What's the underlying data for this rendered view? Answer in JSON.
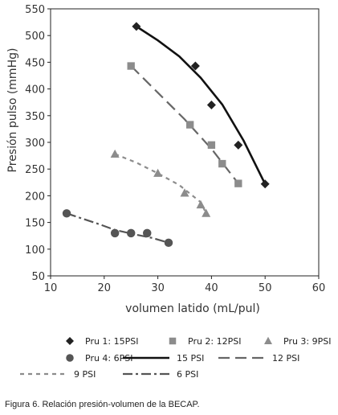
{
  "chart_data": {
    "type": "scatter",
    "xlabel": "volumen latido (mL/pul)",
    "ylabel": "Presión pulso (mmHg)",
    "xlim": [
      10,
      60
    ],
    "ylim": [
      50,
      550
    ],
    "xticks": [
      10,
      20,
      30,
      40,
      50,
      60
    ],
    "yticks": [
      50,
      100,
      150,
      200,
      250,
      300,
      350,
      400,
      450,
      500,
      550
    ],
    "grid": "none",
    "legend_position": "bottom",
    "series": [
      {
        "name": "Pru 1: 15PSI",
        "kind": "points",
        "marker": "diamond",
        "color": "#222222",
        "x": [
          26,
          37,
          40,
          45,
          50
        ],
        "y": [
          517,
          443,
          370,
          295,
          222
        ]
      },
      {
        "name": "Pru 2: 12PSI",
        "kind": "points",
        "marker": "square",
        "color": "#8c8c8c",
        "x": [
          25,
          36,
          40,
          42,
          45
        ],
        "y": [
          443,
          333,
          295,
          260,
          223
        ]
      },
      {
        "name": "Pru 3: 9PSI",
        "kind": "points",
        "marker": "triangle",
        "color": "#8c8c8c",
        "x": [
          22,
          30,
          35,
          38,
          39
        ],
        "y": [
          278,
          242,
          205,
          183,
          167
        ]
      },
      {
        "name": "Pru 4: 6PSI",
        "kind": "points",
        "marker": "circle",
        "color": "#555555",
        "x": [
          13,
          22,
          25,
          28,
          32
        ],
        "y": [
          167,
          130,
          130,
          130,
          112
        ]
      },
      {
        "name": "15 PSI",
        "kind": "line",
        "dash": "solid",
        "color": "#111111",
        "width": 2.6,
        "x": [
          26,
          30,
          34,
          38,
          42,
          46,
          50
        ],
        "y": [
          517,
          491,
          461,
          421,
          371,
          303,
          222
        ]
      },
      {
        "name": "12 PSI",
        "kind": "line",
        "dash": "longdash",
        "color": "#666666",
        "width": 2.2,
        "x": [
          25,
          30,
          35,
          40,
          45
        ],
        "y": [
          443,
          393,
          343,
          288,
          223
        ]
      },
      {
        "name": "9 PSI",
        "kind": "line",
        "dash": "short",
        "color": "#8c8c8c",
        "width": 2.2,
        "x": [
          22,
          26,
          30,
          34,
          38,
          39
        ],
        "y": [
          278,
          262,
          242,
          220,
          188,
          167
        ]
      },
      {
        "name": "6 PSI",
        "kind": "line",
        "dash": "dashdot",
        "color": "#555555",
        "width": 2.2,
        "x": [
          13,
          16,
          19,
          22,
          26,
          29,
          32
        ],
        "y": [
          167,
          157,
          147,
          136,
          127,
          121,
          112
        ]
      }
    ]
  },
  "caption": "Figura 6.  Relación presión-volumen de la BECAP."
}
